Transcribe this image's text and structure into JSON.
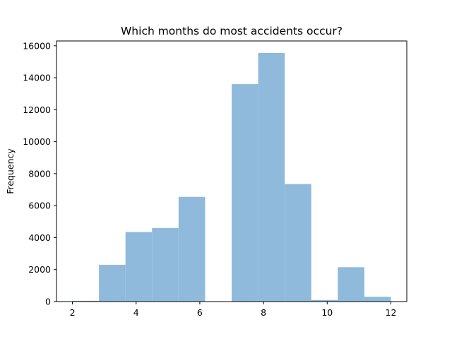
{
  "chart_data": {
    "type": "bar",
    "subtype": "histogram",
    "title": "Which months do most accidents occur?",
    "xlabel": "",
    "ylabel": "Frequency",
    "bin_edges": [
      2.0,
      2.833,
      3.667,
      4.5,
      5.333,
      6.167,
      7.0,
      7.833,
      8.667,
      9.5,
      10.333,
      11.167,
      12.0
    ],
    "values": [
      50,
      2300,
      4350,
      4600,
      6550,
      0,
      13600,
      15550,
      7350,
      100,
      2150,
      300
    ],
    "xlim": [
      1.5,
      12.5
    ],
    "ylim": [
      0,
      16300
    ],
    "xticks": [
      2,
      4,
      6,
      8,
      10,
      12
    ],
    "yticks": [
      0,
      2000,
      4000,
      6000,
      8000,
      10000,
      12000,
      14000,
      16000
    ],
    "grid": false,
    "legend": "none",
    "colors": {
      "bar": "#8fbadb",
      "axis": "#000000",
      "background": "#ffffff"
    }
  }
}
